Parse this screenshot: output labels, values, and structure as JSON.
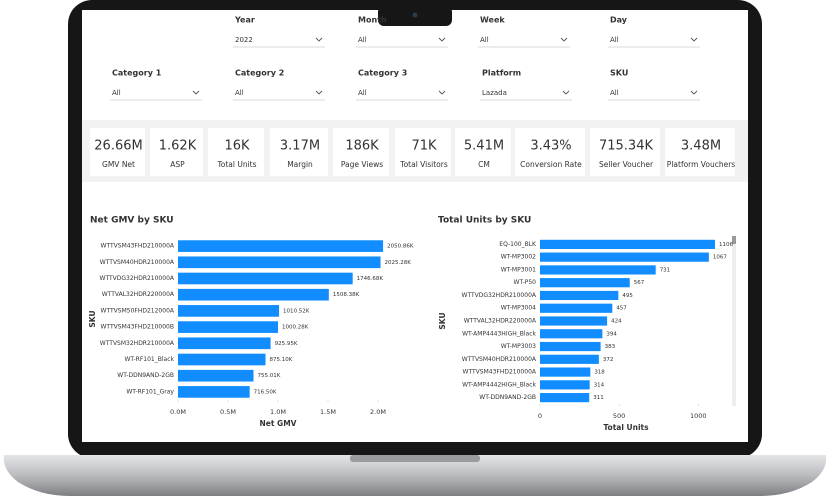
{
  "filters": [
    {
      "label": "Year",
      "value": "2022"
    },
    {
      "label": "Month",
      "value": "All"
    },
    {
      "label": "Week",
      "value": "All"
    },
    {
      "label": "Day",
      "value": "All"
    },
    {
      "label": "Category 1",
      "value": "All"
    },
    {
      "label": "Category 2",
      "value": "All"
    },
    {
      "label": "Category 3",
      "value": "All"
    },
    {
      "label": "Platform",
      "value": "Lazada"
    },
    {
      "label": "SKU",
      "value": "All"
    }
  ],
  "kpis": [
    {
      "value": "26.66M",
      "label": "GMV Net"
    },
    {
      "value": "1.62K",
      "label": "ASP"
    },
    {
      "value": "16K",
      "label": "Total Units"
    },
    {
      "value": "3.17M",
      "label": "Margin"
    },
    {
      "value": "186K",
      "label": "Page Views"
    },
    {
      "value": "71K",
      "label": "Total Visitors"
    },
    {
      "value": "5.41M",
      "label": "CM"
    },
    {
      "value": "3.43%",
      "label": "Conversion Rate"
    },
    {
      "value": "715.34K",
      "label": "Seller Voucher"
    },
    {
      "value": "3.48M",
      "label": "Platform Vouchers"
    }
  ],
  "chart_data": [
    {
      "type": "hbar",
      "title": "Net GMV by SKU",
      "x_label": "Net GMV",
      "y_label": "SKU",
      "color": "#118dff",
      "categories": [
        "WTTVSM43FHD210000A",
        "WTTVSM40HDR210000A",
        "WTTVDG32HDR210000A",
        "WTTVAL32HDR220000A",
        "WTTVSM50FHD212000A",
        "WTTVSM43FHD210000B",
        "WTTVSM32HDR210000A",
        "WT-RF101_Black",
        "WT-DDN9AND-2GB",
        "WT-RF101_Gray"
      ],
      "values": [
        2050860,
        2025280,
        1746680,
        1508380,
        1010520,
        1000280,
        925950,
        875100,
        755010,
        716500
      ],
      "value_labels": [
        "2050.86K",
        "2025.28K",
        "1746.68K",
        "1508.38K",
        "1010.52K",
        "1000.28K",
        "925.95K",
        "875.10K",
        "755.01K",
        "716.50K"
      ],
      "xlim": [
        0,
        2100000
      ],
      "xticks": [
        {
          "value": 0,
          "label": "0.0M"
        },
        {
          "value": 500000,
          "label": "0.5M"
        },
        {
          "value": 1000000,
          "label": "1.0M"
        },
        {
          "value": 1500000,
          "label": "1.5M"
        },
        {
          "value": 2000000,
          "label": "2.0M"
        }
      ]
    },
    {
      "type": "hbar",
      "title": "Total Units by SKU",
      "x_label": "Total Units",
      "y_label": "SKU",
      "color": "#118dff",
      "categories": [
        "EQ-100_BLK",
        "WT-MP3002",
        "WT-MP3001",
        "WT-P50",
        "WTTVDG32HDR210000A",
        "WT-MP3004",
        "WTTVAL32HDR220000A",
        "WT-AMP4443HIGH_Black",
        "WT-MP3003",
        "WTTVSM40HDR210000A",
        "WTTVSM43FHD210000A",
        "WT-AMP4442HIGH_Black",
        "WT-DDN9AND-2GB"
      ],
      "values": [
        1106,
        1067,
        731,
        567,
        495,
        457,
        424,
        394,
        383,
        372,
        318,
        314,
        311
      ],
      "xlim": [
        0,
        1150
      ],
      "xticks": [
        0,
        500,
        1000
      ]
    }
  ]
}
